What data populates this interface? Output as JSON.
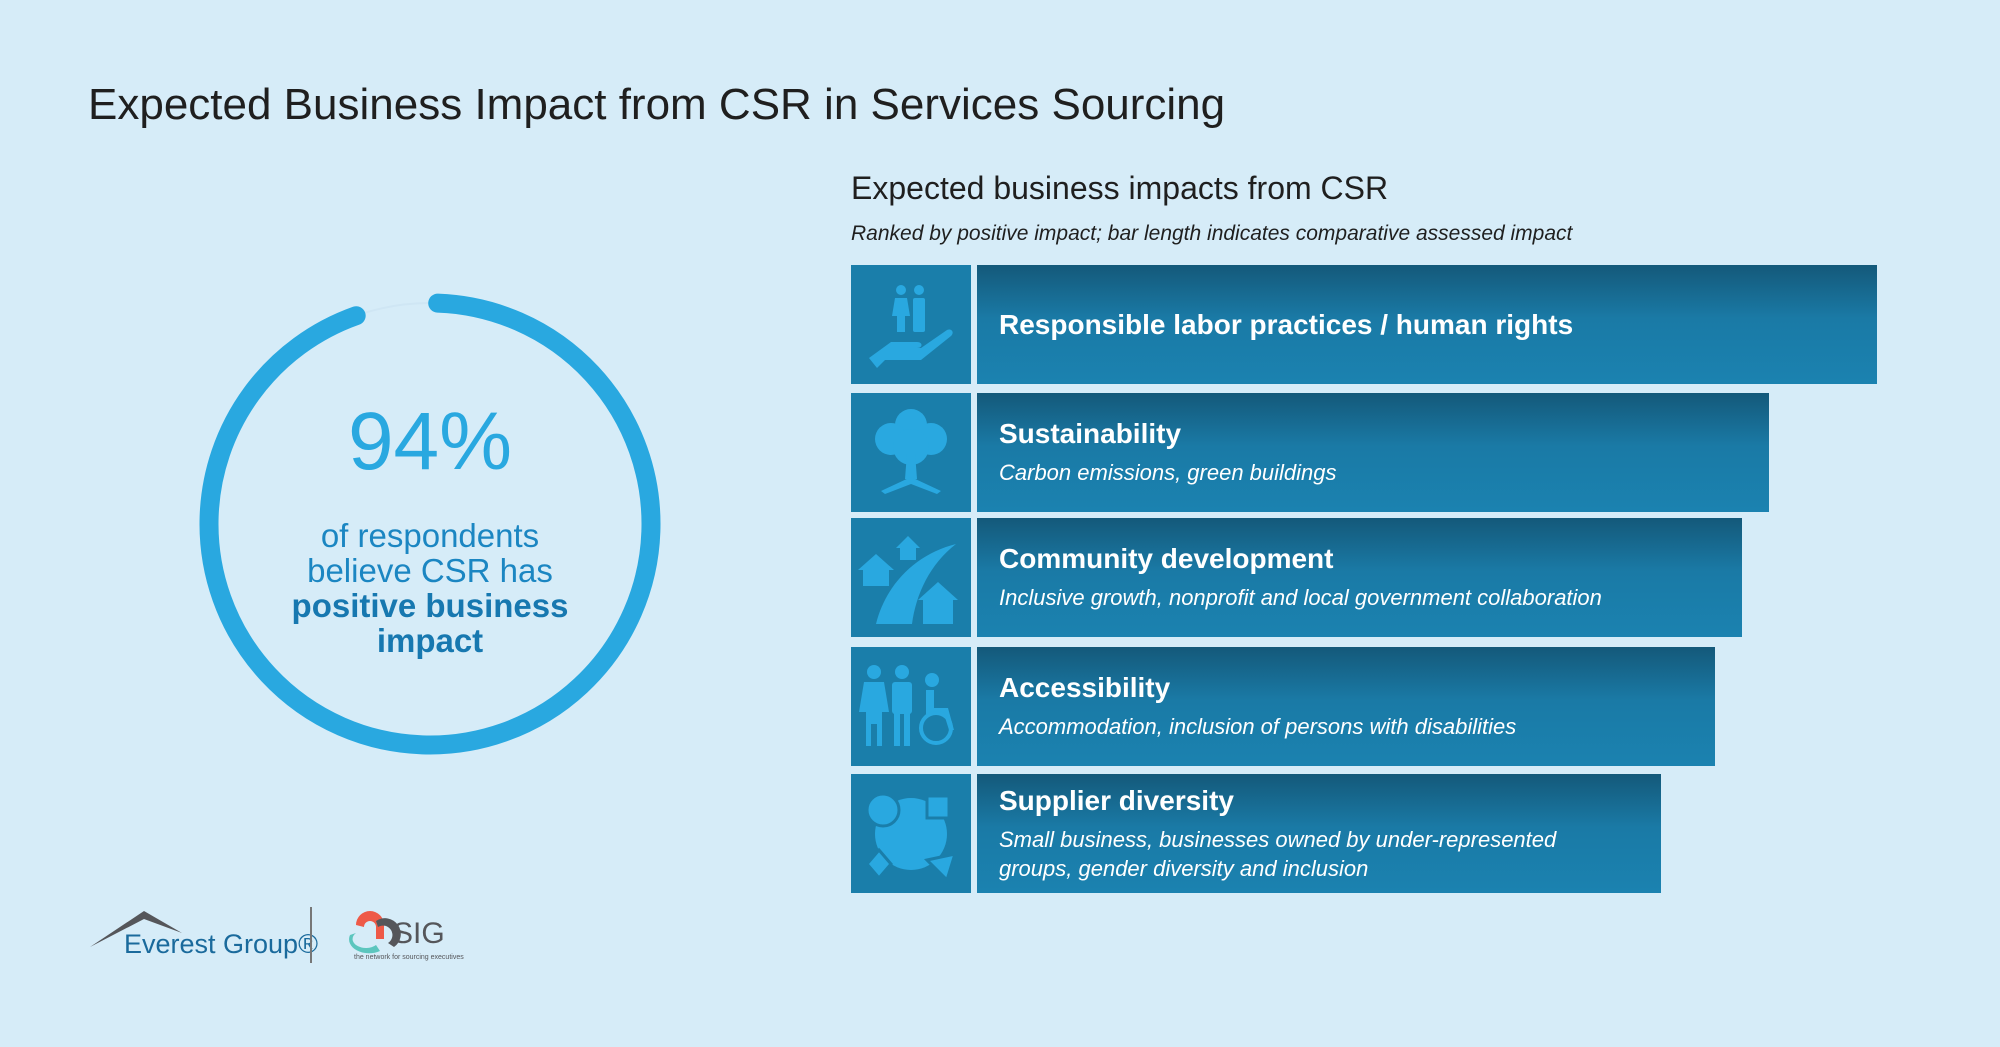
{
  "title": "Expected Business Impact from CSR in Services Sourcing",
  "stat": {
    "value": "94%",
    "fraction": 0.94,
    "line1": "of respondents",
    "line2": "believe CSR has",
    "emphasis": "positive business impact"
  },
  "chart_data": {
    "type": "bar",
    "title": "Expected business impacts from CSR",
    "subtitle": "Ranked by positive impact; bar length indicates comparative assessed impact",
    "items": [
      {
        "label": "Responsible labor practices / human rights",
        "detail": "",
        "relative_impact": 100,
        "icon": "hand-people-icon"
      },
      {
        "label": "Sustainability",
        "detail": "Carbon emissions, green buildings",
        "relative_impact": 88,
        "icon": "tree-icon"
      },
      {
        "label": "Community development",
        "detail": "Inclusive growth, nonprofit and local government collaboration",
        "relative_impact": 85,
        "icon": "houses-road-icon"
      },
      {
        "label": "Accessibility",
        "detail": "Accommodation, inclusion of persons with disabilities",
        "relative_impact": 82,
        "icon": "people-wheelchair-icon"
      },
      {
        "label": "Supplier diversity",
        "detail": "Small business, businesses owned by under-represented groups, gender diversity and inclusion",
        "relative_impact": 76,
        "icon": "shapes-cycle-icon"
      }
    ]
  },
  "logos": {
    "everest": "Everest Group®",
    "sig": "SIG",
    "sig_tagline": "the network for sourcing executives"
  },
  "colors": {
    "accent": "#29a8e0",
    "bar": "#1a7aa6",
    "background": "#d6ecf8"
  }
}
